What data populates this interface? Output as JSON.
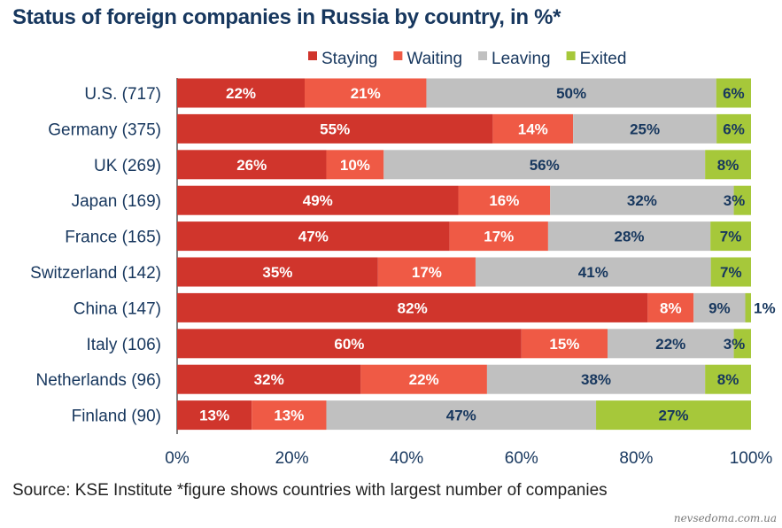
{
  "chart_data": {
    "type": "bar",
    "orientation": "horizontal",
    "stacked": true,
    "title": "Status of foreign companies in Russia by country, in %*",
    "categories": [
      "U.S. (717)",
      "Germany (375)",
      "UK (269)",
      "Japan (169)",
      "France (165)",
      "Switzerland (142)",
      "China (147)",
      "Italy (106)",
      "Netherlands (96)",
      "Finland (90)"
    ],
    "series": [
      {
        "name": "Staying",
        "color": "#d0352c",
        "values": [
          22,
          55,
          26,
          49,
          47,
          35,
          82,
          60,
          32,
          13
        ]
      },
      {
        "name": "Waiting",
        "color": "#ef5a45",
        "values": [
          21,
          14,
          10,
          16,
          17,
          17,
          8,
          15,
          22,
          13
        ]
      },
      {
        "name": "Leaving",
        "color": "#c0c0c0",
        "values": [
          50,
          25,
          56,
          32,
          28,
          41,
          9,
          22,
          38,
          47
        ]
      },
      {
        "name": "Exited",
        "color": "#a6c83a",
        "values": [
          6,
          6,
          8,
          3,
          7,
          7,
          1,
          3,
          8,
          27
        ]
      }
    ],
    "xlim": [
      0,
      100
    ],
    "xticks": [
      "0%",
      "20%",
      "40%",
      "60%",
      "80%",
      "100%"
    ],
    "legend": "top",
    "grid": false,
    "label_colors": {
      "Staying": "#ffffff",
      "Waiting": "#ffffff",
      "Leaving": "#17375e",
      "Exited": "#17375e"
    }
  },
  "source": "Source: KSE Institute *figure shows countries with largest number of companies",
  "watermark": "nevsedoma.com.ua"
}
